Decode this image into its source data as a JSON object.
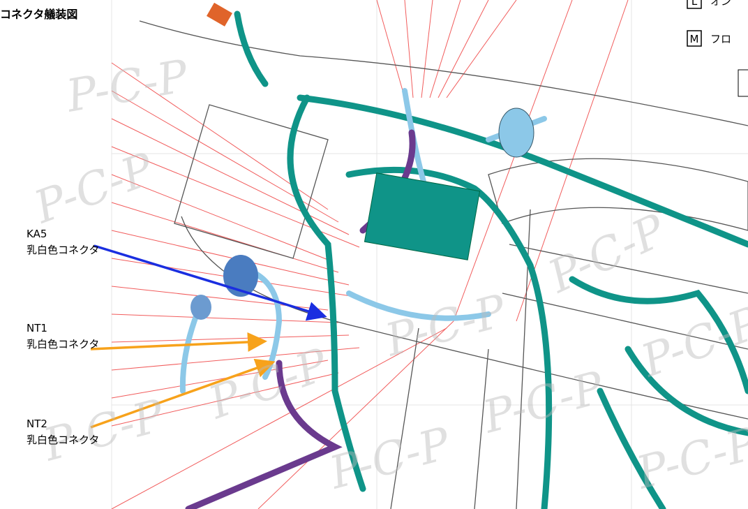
{
  "title": "コネクタ艤装図",
  "callouts": [
    {
      "code": "KA5",
      "desc": "乳白色コネクタ"
    },
    {
      "code": "NT1",
      "desc": "乳白色コネクタ"
    },
    {
      "code": "NT2",
      "desc": "乳白色コネクタ"
    }
  ],
  "legend": [
    {
      "key": "L",
      "label": "オン"
    },
    {
      "key": "M",
      "label": "フロ"
    }
  ],
  "watermark": "P-C-P"
}
